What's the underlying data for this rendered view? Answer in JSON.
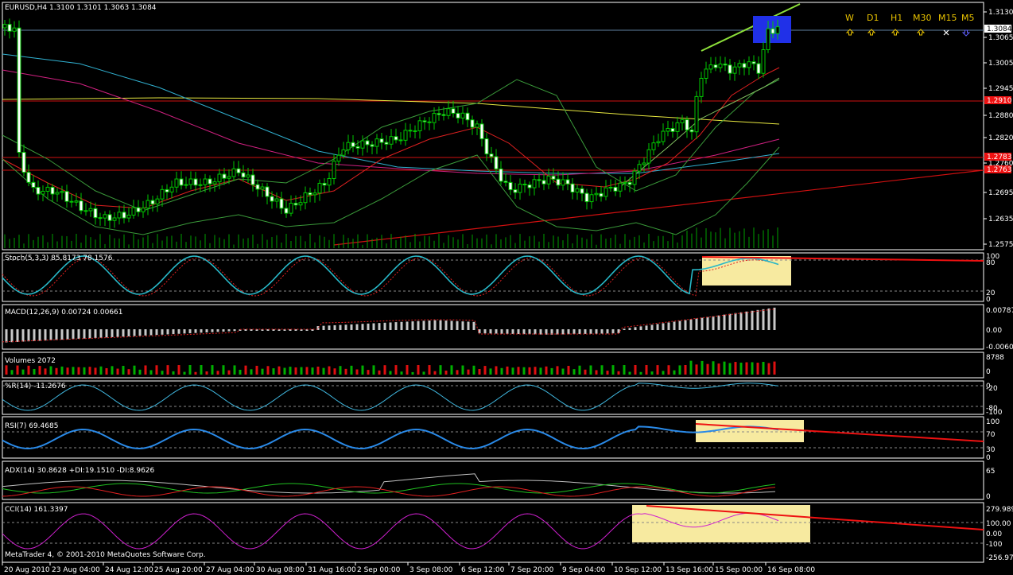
{
  "main": {
    "header": "EURUSD,H4  1.3100 1.3101 1.3063 1.3084",
    "price_axis": [
      "1.3130",
      "1.3065",
      "1.3005",
      "1.2945",
      "1.2880",
      "1.2820",
      "1.2760",
      "1.2695",
      "1.2635",
      "1.2575"
    ],
    "price_tags": [
      {
        "label": "1.3084",
        "color": "#ffffff",
        "text_color": "#000000"
      },
      {
        "label": "1.2910",
        "color": "#ee1111",
        "text_color": "#ffffff"
      },
      {
        "label": "1.2783",
        "color": "#ee1111",
        "text_color": "#ffffff"
      },
      {
        "label": "1.2763",
        "color": "#ee1111",
        "text_color": "#ffffff"
      }
    ],
    "timeframes": [
      "W",
      "D1",
      "H1",
      "M30",
      "M15",
      "M5"
    ],
    "timeframe_arrows": [
      "up-arrow-icon",
      "up-arrow-icon",
      "up-arrow-icon",
      "up-arrow-icon",
      "mixed-arrow-icon",
      "down-arrow-icon"
    ]
  },
  "panels": {
    "stoch": {
      "label": "Stoch(5,3,3) 85.8173 78.1576",
      "axis": [
        "100",
        "80",
        "20",
        "0"
      ]
    },
    "macd": {
      "label": "MACD(12,26,9) 0.00724 0.00661",
      "axis": [
        "0.00787",
        "0.00",
        "-0.00605"
      ]
    },
    "volumes": {
      "label": "Volumes 2072",
      "axis": [
        "8788",
        "0"
      ]
    },
    "wpr": {
      "label": "%R(14) -11.2676",
      "axis": [
        "0",
        "-20",
        "-80",
        "-100"
      ]
    },
    "rsi": {
      "label": "RSI(7) 69.4685",
      "axis": [
        "100",
        "70",
        "30",
        "0"
      ]
    },
    "adx": {
      "label": "ADX(14) 30.8628 +DI:19.1510 -DI:8.9626",
      "axis": [
        "65",
        "0"
      ]
    },
    "cci": {
      "label": "CCI(14) 161.3397",
      "axis": [
        "279.989",
        "100.00",
        "0.00",
        "-100",
        "-256.974"
      ]
    }
  },
  "copyright": "MetaTrader 4, © 2001-2010 MetaQuotes Software Corp.",
  "time_axis": [
    "20 Aug 2010",
    "23 Aug 04:00",
    "24 Aug 12:00",
    "25 Aug 20:00",
    "27 Aug 04:00",
    "30 Aug 08:00",
    "31 Aug 16:00",
    "2 Sep 00:00",
    "3 Sep 08:00",
    "6 Sep 12:00",
    "7 Sep 20:00",
    "9 Sep 04:00",
    "10 Sep 12:00",
    "13 Sep 16:00",
    "15 Sep 00:00",
    "16 Sep 08:00"
  ],
  "colors": {
    "bull": "#00c800",
    "bear": "#ff0000",
    "grid": "#777777",
    "accent": "#e8c200"
  }
}
